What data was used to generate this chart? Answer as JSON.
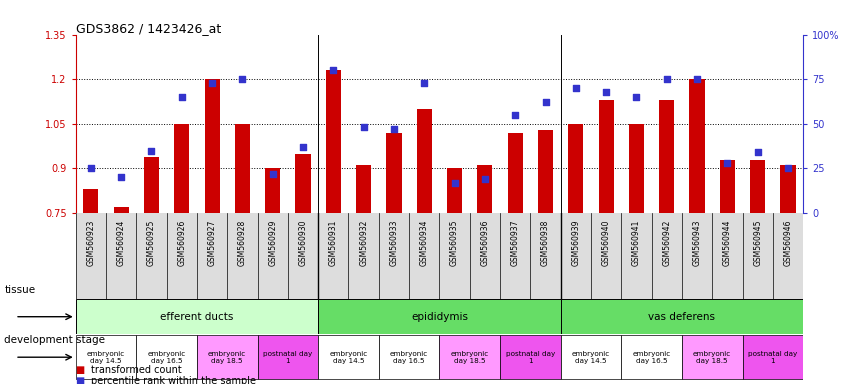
{
  "title": "GDS3862 / 1423426_at",
  "samples": [
    "GSM560923",
    "GSM560924",
    "GSM560925",
    "GSM560926",
    "GSM560927",
    "GSM560928",
    "GSM560929",
    "GSM560930",
    "GSM560931",
    "GSM560932",
    "GSM560933",
    "GSM560934",
    "GSM560935",
    "GSM560936",
    "GSM560937",
    "GSM560938",
    "GSM560939",
    "GSM560940",
    "GSM560941",
    "GSM560942",
    "GSM560943",
    "GSM560944",
    "GSM560945",
    "GSM560946"
  ],
  "transformed_count": [
    0.83,
    0.77,
    0.94,
    1.05,
    1.2,
    1.05,
    0.9,
    0.95,
    1.23,
    0.91,
    1.02,
    1.1,
    0.9,
    0.91,
    1.02,
    1.03,
    1.05,
    1.13,
    1.05,
    1.13,
    1.2,
    0.93,
    0.93,
    0.91
  ],
  "percentile_rank": [
    25,
    20,
    35,
    65,
    73,
    75,
    22,
    37,
    80,
    48,
    47,
    73,
    17,
    19,
    55,
    62,
    70,
    68,
    65,
    75,
    75,
    28,
    34,
    25
  ],
  "ylim_left": [
    0.75,
    1.35
  ],
  "ylim_right": [
    0,
    100
  ],
  "yticks_left": [
    0.75,
    0.9,
    1.05,
    1.2,
    1.35
  ],
  "yticks_right": [
    0,
    25,
    50,
    75,
    100
  ],
  "ytick_labels_right": [
    "0",
    "25",
    "50",
    "75",
    "100%"
  ],
  "dotted_lines": [
    0.9,
    1.05,
    1.2
  ],
  "bar_color": "#cc0000",
  "dot_color": "#3333cc",
  "bar_bottom": 0.75,
  "tissue_groups": [
    {
      "label": "efferent ducts",
      "start": 0,
      "end": 8,
      "color": "#ccffcc"
    },
    {
      "label": "epididymis",
      "start": 8,
      "end": 16,
      "color": "#66dd66"
    },
    {
      "label": "vas deferens",
      "start": 16,
      "end": 24,
      "color": "#66dd66"
    }
  ],
  "dev_stage_groups": [
    {
      "label": "embryonic\nday 14.5",
      "start": 0,
      "end": 2,
      "color": "#ffffff"
    },
    {
      "label": "embryonic\nday 16.5",
      "start": 2,
      "end": 4,
      "color": "#ffffff"
    },
    {
      "label": "embryonic\nday 18.5",
      "start": 4,
      "end": 6,
      "color": "#ff99ff"
    },
    {
      "label": "postnatal day\n1",
      "start": 6,
      "end": 8,
      "color": "#ee55ee"
    },
    {
      "label": "embryonic\nday 14.5",
      "start": 8,
      "end": 10,
      "color": "#ffffff"
    },
    {
      "label": "embryonic\nday 16.5",
      "start": 10,
      "end": 12,
      "color": "#ffffff"
    },
    {
      "label": "embryonic\nday 18.5",
      "start": 12,
      "end": 14,
      "color": "#ff99ff"
    },
    {
      "label": "postnatal day\n1",
      "start": 14,
      "end": 16,
      "color": "#ee55ee"
    },
    {
      "label": "embryonic\nday 14.5",
      "start": 16,
      "end": 18,
      "color": "#ffffff"
    },
    {
      "label": "embryonic\nday 16.5",
      "start": 18,
      "end": 20,
      "color": "#ffffff"
    },
    {
      "label": "embryonic\nday 18.5",
      "start": 20,
      "end": 22,
      "color": "#ff99ff"
    },
    {
      "label": "postnatal day\n1",
      "start": 22,
      "end": 24,
      "color": "#ee55ee"
    }
  ],
  "legend_items": [
    {
      "label": "transformed count",
      "color": "#cc0000"
    },
    {
      "label": "percentile rank within the sample",
      "color": "#3333cc"
    }
  ],
  "tissue_label": "tissue",
  "dev_stage_label": "development stage",
  "group_boundaries": [
    8,
    16
  ]
}
